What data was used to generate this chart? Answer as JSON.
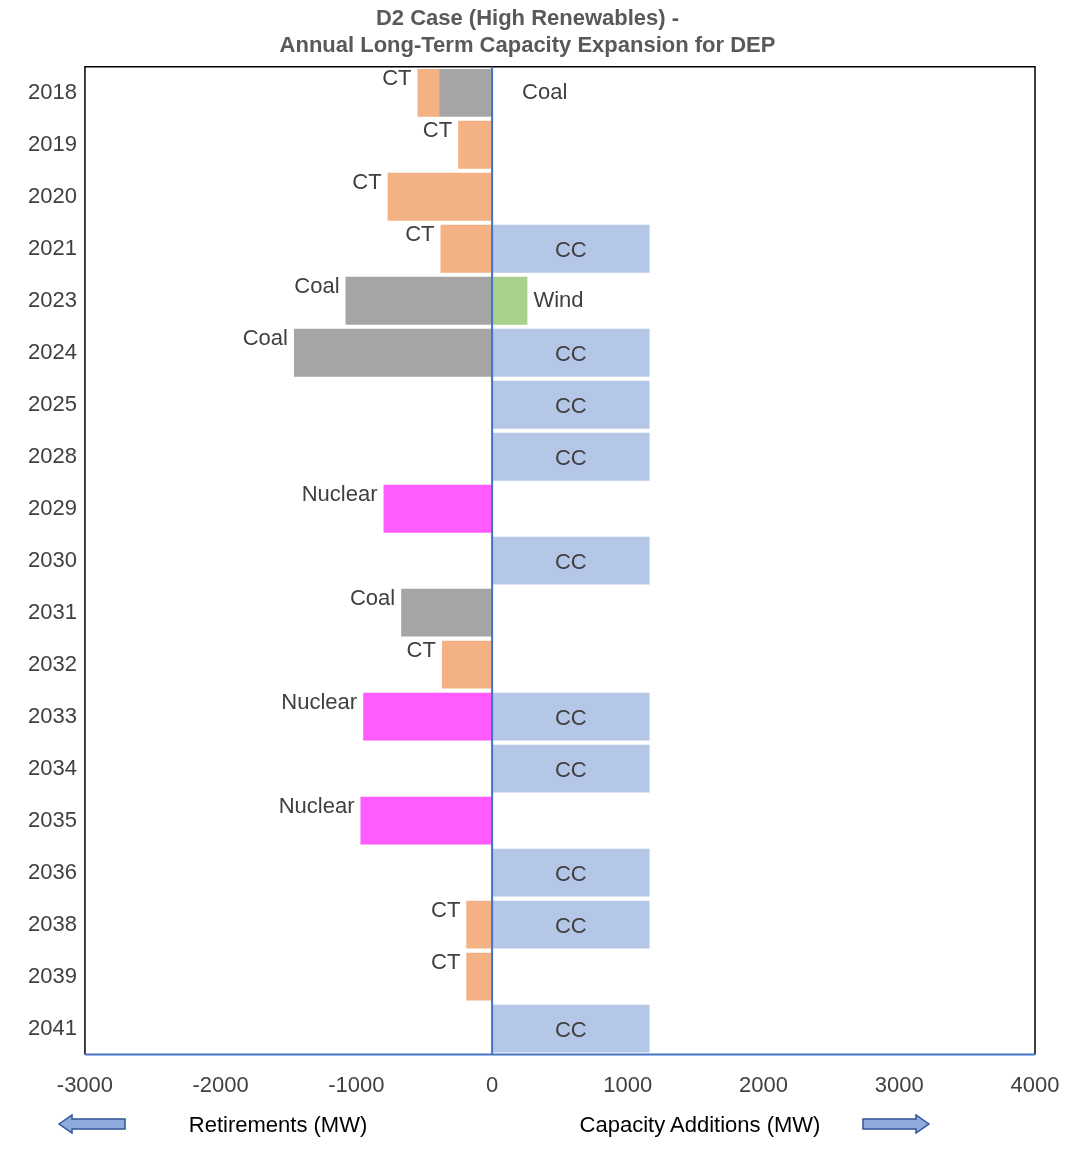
{
  "chart_data": {
    "type": "bar",
    "orientation": "horizontal",
    "stacked": true,
    "title": "D2 Case (High Renewables) -\nAnnual Long-Term Capacity Expansion for DEP",
    "categories": [
      "2018",
      "2019",
      "2020",
      "2021",
      "2023",
      "2024",
      "2025",
      "2028",
      "2029",
      "2030",
      "2031",
      "2032",
      "2033",
      "2034",
      "2035",
      "2036",
      "2038",
      "2039",
      "2041"
    ],
    "series": [
      {
        "name": "Coal",
        "color": "#a5a5a5",
        "values": [
          -390,
          null,
          null,
          null,
          -1080,
          -1460,
          null,
          null,
          null,
          null,
          -670,
          null,
          null,
          null,
          null,
          null,
          null,
          null,
          null
        ]
      },
      {
        "name": "CT",
        "color": "#f4b183",
        "values": [
          -160,
          -250,
          -770,
          -380,
          null,
          null,
          null,
          null,
          null,
          null,
          null,
          -370,
          null,
          null,
          null,
          null,
          -190,
          -190,
          null
        ]
      },
      {
        "name": "Nuclear",
        "color": "#ff5bff",
        "values": [
          null,
          null,
          null,
          null,
          null,
          null,
          null,
          null,
          -800,
          null,
          null,
          null,
          -950,
          null,
          -970,
          null,
          null,
          null,
          null
        ]
      },
      {
        "name": "CC",
        "color": "#b4c7e7",
        "values": [
          null,
          null,
          null,
          1160,
          null,
          1160,
          1160,
          1160,
          null,
          1160,
          null,
          null,
          1160,
          1160,
          null,
          1160,
          1160,
          null,
          1160
        ]
      },
      {
        "name": "Wind",
        "color": "#a9d18e",
        "values": [
          null,
          null,
          null,
          null,
          260,
          null,
          null,
          null,
          null,
          null,
          null,
          null,
          null,
          null,
          null,
          null,
          null,
          null,
          null
        ]
      }
    ],
    "xlim": [
      -3000,
      4000
    ],
    "xticks": [
      -3000,
      -2000,
      -1000,
      0,
      1000,
      2000,
      3000,
      4000
    ],
    "grid": false,
    "legend": false,
    "ref_lines": [
      {
        "axis": "x",
        "value": 0,
        "color": "#4472c4"
      }
    ],
    "annotations": [
      "Retirements (MW)",
      "Capacity Additions (MW)"
    ]
  }
}
